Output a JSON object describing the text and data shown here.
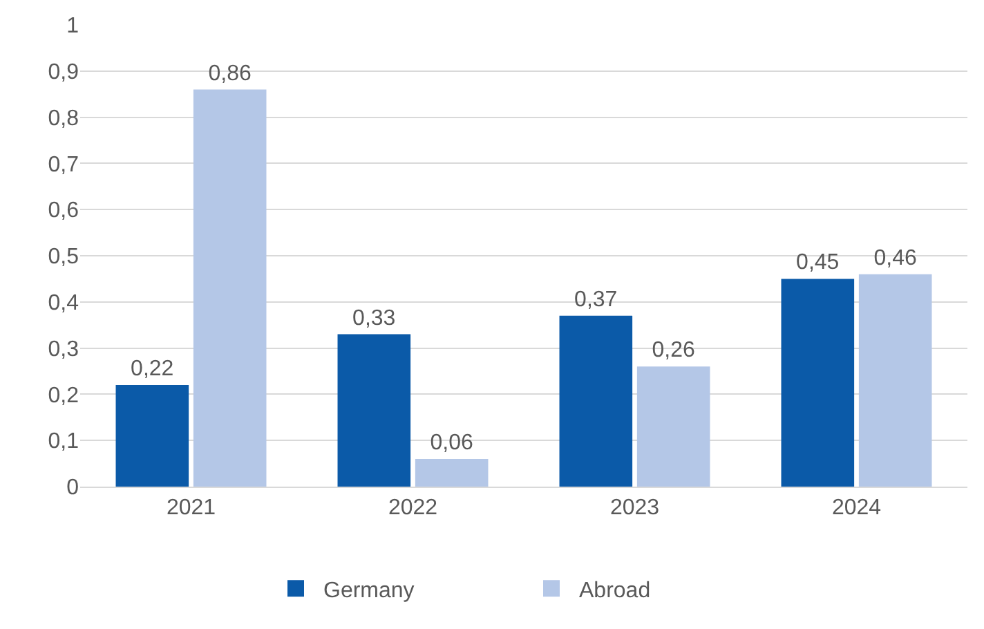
{
  "chart_data": {
    "type": "bar",
    "categories": [
      "2021",
      "2022",
      "2023",
      "2024"
    ],
    "series": [
      {
        "name": "Germany",
        "color": "#0b5aa8",
        "values": [
          0.22,
          0.33,
          0.37,
          0.45
        ],
        "value_labels": [
          "0,22",
          "0,33",
          "0,37",
          "0,45"
        ]
      },
      {
        "name": "Abroad",
        "color": "#b4c7e7",
        "values": [
          0.86,
          0.06,
          0.26,
          0.46
        ],
        "value_labels": [
          "0,86",
          "0,06",
          "0,26",
          "0,46"
        ]
      }
    ],
    "ylim": [
      0,
      1
    ],
    "yticks": [
      0,
      {
        "value": 0.1,
        "label": "0,1"
      },
      {
        "value": 0.2,
        "label": "0,2"
      },
      {
        "value": 0.3,
        "label": "0,3"
      },
      {
        "value": 0.4,
        "label": "0,4"
      },
      {
        "value": 0.5,
        "label": "0,5"
      },
      {
        "value": 0.6,
        "label": "0,6"
      },
      {
        "value": 0.7,
        "label": "0,7"
      },
      {
        "value": 0.8,
        "label": "0,8"
      },
      {
        "value": 0.9,
        "label": "0,9"
      },
      1
    ],
    "grid": "y",
    "legend": "bottom"
  }
}
